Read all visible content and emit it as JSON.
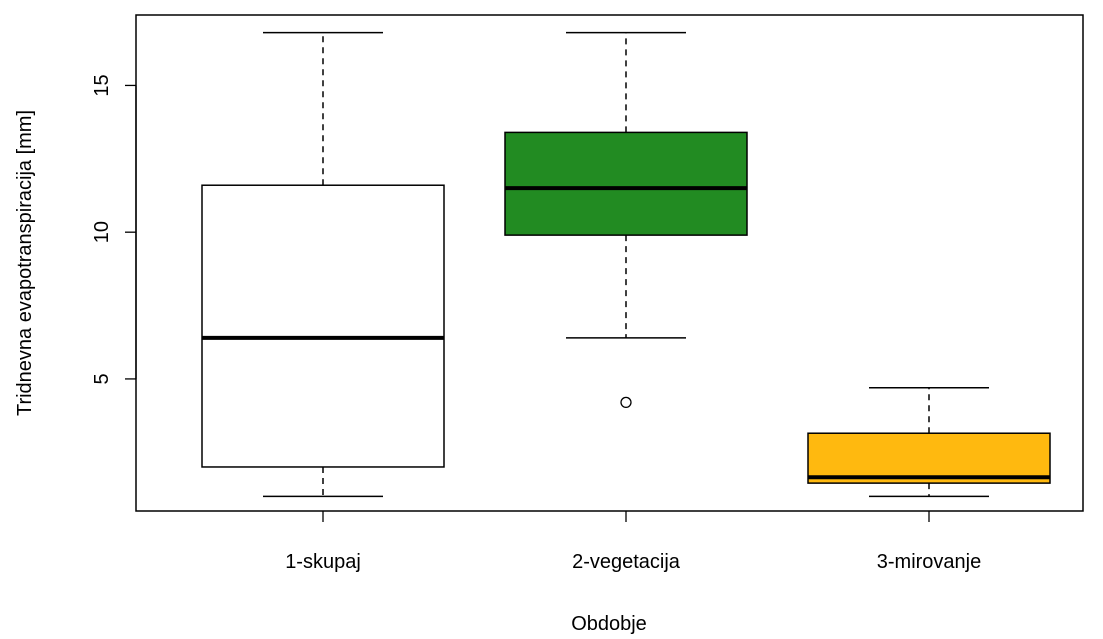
{
  "chart_data": {
    "type": "boxplot",
    "xlabel": "Obdobje",
    "ylabel": "Tridnevna evapotranspiracija [mm]",
    "yticks": [
      5,
      10,
      15
    ],
    "ylim": [
      0.5,
      17.4
    ],
    "categories": [
      "1-skupaj",
      "2-vegetacija",
      "3-mirovanje"
    ],
    "boxes": [
      {
        "label": "1-skupaj",
        "color": "#ffffff",
        "whisker_low": 1.0,
        "q1": 2.0,
        "median": 6.4,
        "q3": 11.6,
        "whisker_high": 16.8,
        "outliers": []
      },
      {
        "label": "2-vegetacija",
        "color": "#228b22",
        "whisker_low": 6.4,
        "q1": 9.9,
        "median": 11.5,
        "q3": 13.4,
        "whisker_high": 16.8,
        "outliers": [
          4.2
        ]
      },
      {
        "label": "3-mirovanje",
        "color": "#ffb90f",
        "whisker_low": 1.0,
        "q1": 1.45,
        "median": 1.65,
        "q3": 3.15,
        "whisker_high": 4.7,
        "outliers": []
      }
    ]
  }
}
